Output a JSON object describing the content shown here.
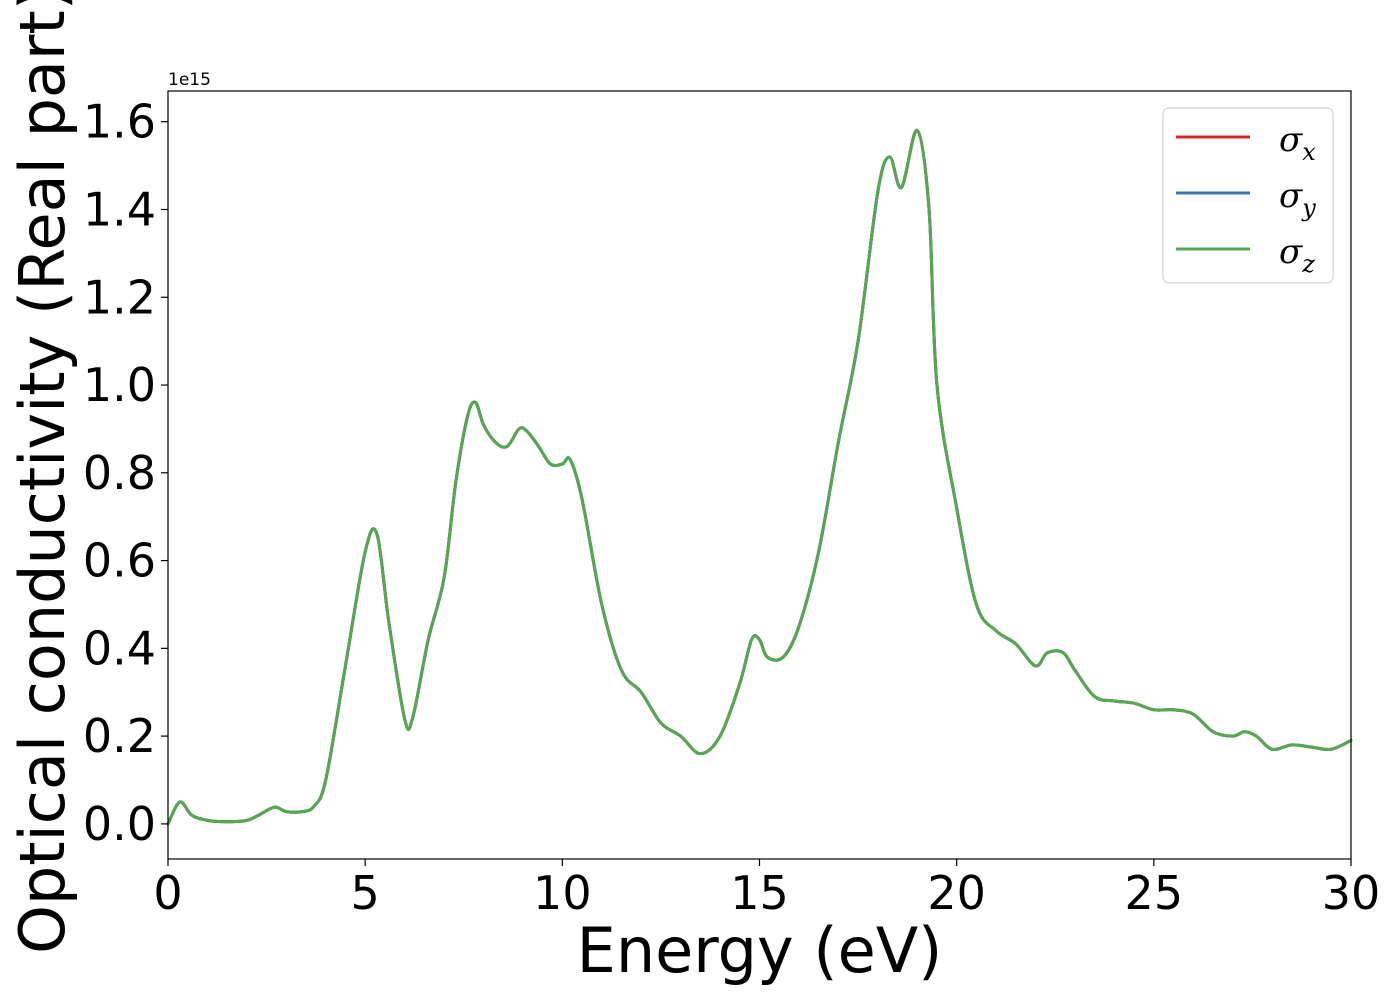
{
  "chart_data": {
    "type": "line",
    "xlabel": "Energy (eV)",
    "ylabel": "Optical conductivity (Real part)",
    "y_offset_text": "1e15",
    "xlim": [
      0,
      30
    ],
    "ylim": [
      -0.08,
      1.67
    ],
    "y_scale_multiplier": 1000000000000000.0,
    "x_ticks": [
      0,
      5,
      10,
      15,
      20,
      25,
      30
    ],
    "x_tick_labels": [
      "0",
      "5",
      "10",
      "15",
      "20",
      "25",
      "30"
    ],
    "y_ticks": [
      0.0,
      0.2,
      0.4,
      0.6,
      0.8,
      1.0,
      1.2,
      1.4,
      1.6
    ],
    "y_tick_labels": [
      "0.0",
      "0.2",
      "0.4",
      "0.6",
      "0.8",
      "1.0",
      "1.2",
      "1.4",
      "1.6"
    ],
    "grid": false,
    "legend_position": "top-right",
    "x": [
      0,
      0.3,
      0.6,
      1.0,
      1.5,
      2.0,
      2.3,
      2.7,
      3.0,
      3.4,
      3.7,
      4.0,
      4.5,
      5.0,
      5.3,
      5.6,
      6.0,
      6.2,
      6.6,
      7.0,
      7.3,
      7.6,
      7.8,
      8.0,
      8.3,
      8.6,
      8.9,
      9.1,
      9.4,
      9.7,
      10.0,
      10.2,
      10.5,
      11.0,
      11.5,
      12.0,
      12.5,
      13.0,
      13.5,
      14.0,
      14.5,
      14.8,
      15.0,
      15.2,
      15.6,
      16.0,
      16.5,
      17.0,
      17.5,
      18.0,
      18.3,
      18.6,
      19.0,
      19.3,
      19.5,
      20.0,
      20.5,
      21.0,
      21.5,
      22.0,
      22.3,
      22.7,
      23.0,
      23.5,
      24.0,
      24.5,
      25.0,
      25.5,
      26.0,
      26.5,
      27.0,
      27.3,
      27.6,
      28.0,
      28.5,
      29.0,
      29.5,
      30.0
    ],
    "series": [
      {
        "name": "σ",
        "subscript": "x",
        "color": "#d62728",
        "values": [
          0.0,
          0.05,
          0.02,
          0.008,
          0.005,
          0.008,
          0.02,
          0.038,
          0.028,
          0.028,
          0.04,
          0.1,
          0.36,
          0.62,
          0.66,
          0.46,
          0.24,
          0.24,
          0.42,
          0.56,
          0.78,
          0.93,
          0.96,
          0.91,
          0.87,
          0.86,
          0.9,
          0.895,
          0.86,
          0.82,
          0.82,
          0.83,
          0.74,
          0.5,
          0.35,
          0.3,
          0.23,
          0.2,
          0.16,
          0.2,
          0.32,
          0.42,
          0.42,
          0.38,
          0.38,
          0.45,
          0.62,
          0.87,
          1.1,
          1.44,
          1.52,
          1.45,
          1.58,
          1.4,
          1.0,
          0.72,
          0.5,
          0.44,
          0.41,
          0.36,
          0.39,
          0.39,
          0.35,
          0.29,
          0.28,
          0.275,
          0.26,
          0.26,
          0.25,
          0.21,
          0.2,
          0.21,
          0.2,
          0.17,
          0.18,
          0.175,
          0.17,
          0.19
        ]
      },
      {
        "name": "σ",
        "subscript": "y",
        "color": "#3b75af",
        "values": [
          0.0,
          0.05,
          0.02,
          0.008,
          0.005,
          0.008,
          0.02,
          0.038,
          0.028,
          0.028,
          0.04,
          0.1,
          0.36,
          0.62,
          0.66,
          0.46,
          0.24,
          0.24,
          0.42,
          0.56,
          0.78,
          0.93,
          0.96,
          0.91,
          0.87,
          0.86,
          0.9,
          0.895,
          0.86,
          0.82,
          0.82,
          0.83,
          0.74,
          0.5,
          0.35,
          0.3,
          0.23,
          0.2,
          0.16,
          0.2,
          0.32,
          0.42,
          0.42,
          0.38,
          0.38,
          0.45,
          0.62,
          0.87,
          1.1,
          1.44,
          1.52,
          1.45,
          1.58,
          1.4,
          1.0,
          0.72,
          0.5,
          0.44,
          0.41,
          0.36,
          0.39,
          0.39,
          0.35,
          0.29,
          0.28,
          0.275,
          0.26,
          0.26,
          0.25,
          0.21,
          0.2,
          0.21,
          0.2,
          0.17,
          0.18,
          0.175,
          0.17,
          0.19
        ]
      },
      {
        "name": "σ",
        "subscript": "z",
        "color": "#55a84f",
        "values": [
          0.0,
          0.05,
          0.02,
          0.008,
          0.005,
          0.008,
          0.02,
          0.038,
          0.028,
          0.028,
          0.04,
          0.1,
          0.36,
          0.62,
          0.66,
          0.46,
          0.24,
          0.24,
          0.42,
          0.56,
          0.78,
          0.93,
          0.96,
          0.91,
          0.87,
          0.86,
          0.9,
          0.895,
          0.86,
          0.82,
          0.82,
          0.83,
          0.74,
          0.5,
          0.35,
          0.3,
          0.23,
          0.2,
          0.16,
          0.2,
          0.32,
          0.42,
          0.42,
          0.38,
          0.38,
          0.45,
          0.62,
          0.87,
          1.1,
          1.44,
          1.52,
          1.45,
          1.58,
          1.4,
          1.0,
          0.72,
          0.5,
          0.44,
          0.41,
          0.36,
          0.39,
          0.39,
          0.35,
          0.29,
          0.28,
          0.275,
          0.26,
          0.26,
          0.25,
          0.21,
          0.2,
          0.21,
          0.2,
          0.17,
          0.18,
          0.175,
          0.17,
          0.19
        ]
      }
    ]
  }
}
